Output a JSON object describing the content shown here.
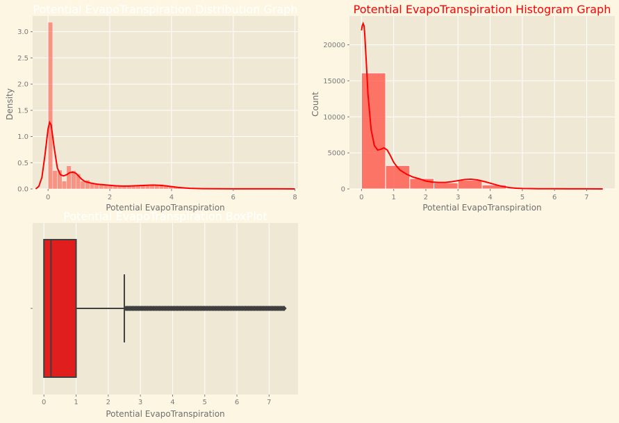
{
  "colors": {
    "figure_bg": "#fdf6e3",
    "axes_bg": "#eee8d5",
    "grid": "#ffffff",
    "hist_fill": "#ff4d40",
    "kde_line": "#ff0000",
    "box_fill": "#e01e1e",
    "box_edge": "#3f3f3f"
  },
  "chart_data": [
    {
      "type": "bar",
      "title": "Potential EvapoTranspiration Distribution Graph",
      "xlabel": "Potential EvapoTranspiration",
      "ylabel": "Density",
      "xlim": [
        -0.5,
        8.1
      ],
      "ylim": [
        0,
        3.3
      ],
      "xticks": [
        0,
        2,
        4,
        6,
        8
      ],
      "yticks": [
        0.0,
        0.5,
        1.0,
        1.5,
        2.0,
        2.5,
        3.0
      ],
      "ytick_labels": [
        "0.0",
        "0.5",
        "1.0",
        "1.5",
        "2.0",
        "2.5",
        "3.0"
      ],
      "grid": true,
      "bin_width": 0.15,
      "bins": [
        {
          "x": 0.0,
          "y": 3.18
        },
        {
          "x": 0.15,
          "y": 0.35
        },
        {
          "x": 0.3,
          "y": 0.36
        },
        {
          "x": 0.45,
          "y": 0.15
        },
        {
          "x": 0.6,
          "y": 0.44
        },
        {
          "x": 0.75,
          "y": 0.35
        },
        {
          "x": 0.9,
          "y": 0.29
        },
        {
          "x": 1.05,
          "y": 0.15
        },
        {
          "x": 1.2,
          "y": 0.17
        },
        {
          "x": 1.35,
          "y": 0.12
        },
        {
          "x": 1.5,
          "y": 0.11
        },
        {
          "x": 1.65,
          "y": 0.1
        },
        {
          "x": 1.8,
          "y": 0.09
        },
        {
          "x": 1.95,
          "y": 0.08
        },
        {
          "x": 2.1,
          "y": 0.07
        },
        {
          "x": 2.25,
          "y": 0.07
        },
        {
          "x": 2.4,
          "y": 0.06
        },
        {
          "x": 2.55,
          "y": 0.06
        },
        {
          "x": 2.7,
          "y": 0.06
        },
        {
          "x": 2.85,
          "y": 0.07
        },
        {
          "x": 3.0,
          "y": 0.07
        },
        {
          "x": 3.15,
          "y": 0.08
        },
        {
          "x": 3.3,
          "y": 0.09
        },
        {
          "x": 3.45,
          "y": 0.08
        },
        {
          "x": 3.6,
          "y": 0.09
        },
        {
          "x": 3.75,
          "y": 0.06
        },
        {
          "x": 3.9,
          "y": 0.05
        },
        {
          "x": 4.05,
          "y": 0.04
        },
        {
          "x": 4.2,
          "y": 0.03
        },
        {
          "x": 4.35,
          "y": 0.02
        },
        {
          "x": 4.5,
          "y": 0.015
        },
        {
          "x": 4.65,
          "y": 0.01
        },
        {
          "x": 4.8,
          "y": 0.008
        },
        {
          "x": 4.95,
          "y": 0.006
        },
        {
          "x": 5.1,
          "y": 0.005
        },
        {
          "x": 5.25,
          "y": 0.004
        },
        {
          "x": 5.4,
          "y": 0.003
        },
        {
          "x": 5.55,
          "y": 0.003
        },
        {
          "x": 5.7,
          "y": 0.002
        },
        {
          "x": 5.85,
          "y": 0.002
        },
        {
          "x": 6.0,
          "y": 0.002
        },
        {
          "x": 6.15,
          "y": 0.002
        },
        {
          "x": 6.3,
          "y": 0.002
        },
        {
          "x": 6.45,
          "y": 0.002
        },
        {
          "x": 6.6,
          "y": 0.002
        },
        {
          "x": 6.75,
          "y": 0.002
        },
        {
          "x": 6.9,
          "y": 0.002
        },
        {
          "x": 7.05,
          "y": 0.002
        },
        {
          "x": 7.2,
          "y": 0.002
        },
        {
          "x": 7.35,
          "y": 0.002
        },
        {
          "x": 7.5,
          "y": 0.002
        },
        {
          "x": 7.65,
          "y": 0.002
        },
        {
          "x": 7.8,
          "y": 0.002
        }
      ],
      "kde": {
        "x": [
          -0.4,
          -0.3,
          -0.2,
          -0.1,
          0.0,
          0.05,
          0.1,
          0.2,
          0.3,
          0.4,
          0.5,
          0.6,
          0.7,
          0.8,
          0.9,
          1.0,
          1.1,
          1.2,
          1.4,
          1.6,
          1.8,
          2.0,
          2.2,
          2.4,
          2.6,
          2.8,
          3.0,
          3.2,
          3.4,
          3.6,
          3.8,
          4.0,
          4.2,
          4.4,
          4.6,
          4.8,
          5.0,
          5.5,
          6.0,
          6.5,
          7.0,
          7.5,
          8.0
        ],
        "y": [
          0.0,
          0.05,
          0.22,
          0.65,
          1.15,
          1.27,
          1.22,
          0.78,
          0.4,
          0.27,
          0.25,
          0.27,
          0.31,
          0.32,
          0.3,
          0.24,
          0.18,
          0.14,
          0.11,
          0.09,
          0.08,
          0.07,
          0.06,
          0.055,
          0.055,
          0.06,
          0.065,
          0.07,
          0.075,
          0.07,
          0.06,
          0.045,
          0.03,
          0.02,
          0.012,
          0.008,
          0.005,
          0.003,
          0.002,
          0.002,
          0.002,
          0.001,
          0.0
        ]
      }
    },
    {
      "type": "bar",
      "title": "Potential EvapoTranspiration Histogram Graph",
      "xlabel": "Potential EvapoTranspiration",
      "ylabel": "Count",
      "xlim": [
        -0.375,
        7.875
      ],
      "ylim": [
        0,
        24000
      ],
      "xticks": [
        0,
        1,
        2,
        3,
        4,
        5,
        6,
        7
      ],
      "yticks": [
        0,
        5000,
        10000,
        15000,
        20000
      ],
      "ytick_labels": [
        "0",
        "5000",
        "10000",
        "15000",
        "20000"
      ],
      "grid": true,
      "bin_width": 0.75,
      "bins": [
        {
          "x": 0.0,
          "y": 16100
        },
        {
          "x": 0.75,
          "y": 3250
        },
        {
          "x": 1.5,
          "y": 1450
        },
        {
          "x": 2.25,
          "y": 850
        },
        {
          "x": 3.0,
          "y": 1200
        },
        {
          "x": 3.75,
          "y": 550
        },
        {
          "x": 4.5,
          "y": 120
        },
        {
          "x": 5.25,
          "y": 40
        },
        {
          "x": 6.0,
          "y": 20
        },
        {
          "x": 6.75,
          "y": 15
        }
      ],
      "kde": {
        "x": [
          0.0,
          0.02,
          0.05,
          0.08,
          0.1,
          0.15,
          0.2,
          0.3,
          0.4,
          0.5,
          0.6,
          0.7,
          0.8,
          0.9,
          1.0,
          1.1,
          1.2,
          1.4,
          1.6,
          1.8,
          2.0,
          2.2,
          2.4,
          2.6,
          2.8,
          3.0,
          3.2,
          3.4,
          3.6,
          3.8,
          4.0,
          4.2,
          4.4,
          4.6,
          4.8,
          5.0,
          5.5,
          6.0,
          6.5,
          7.0,
          7.5
        ],
        "y": [
          22000,
          22600,
          22950,
          22600,
          21500,
          17500,
          13200,
          8200,
          6000,
          5400,
          5500,
          5700,
          5400,
          4600,
          3700,
          3100,
          2600,
          2050,
          1650,
          1400,
          1100,
          950,
          900,
          900,
          1000,
          1150,
          1300,
          1350,
          1250,
          1050,
          800,
          550,
          330,
          180,
          100,
          60,
          30,
          20,
          15,
          10,
          5
        ]
      }
    },
    {
      "type": "box",
      "title": "Potential EvapoTranspiration BoxPlot",
      "xlabel": "Potential EvapoTranspiration",
      "xlim": [
        -0.35,
        7.9
      ],
      "xticks": [
        0,
        1,
        2,
        3,
        4,
        5,
        6,
        7
      ],
      "grid": true,
      "box": {
        "whisker_low": 0.0,
        "q1": 0.0,
        "median": 0.22,
        "q3": 1.0,
        "whisker_high": 2.5,
        "outlier_min": 2.55,
        "outlier_max": 7.5
      }
    }
  ]
}
